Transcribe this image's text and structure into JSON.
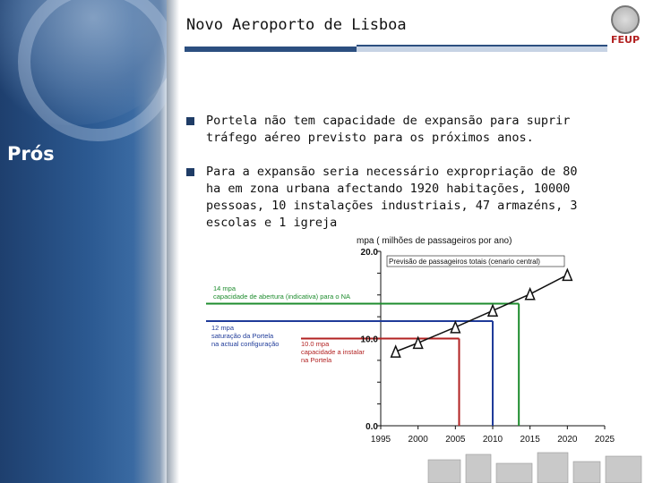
{
  "sidebar": {
    "label": "Prós"
  },
  "header": {
    "title": "Novo Aeroporto de Lisboa",
    "logo_text": "FEUP"
  },
  "bullets": [
    "Portela não tem capacidade de expansão para suprir tráfego aéreo previsto para os próximos anos.",
    "Para a expansão seria necessário expropriação de 80 ha em zona urbana afectando 1920 habitações, 10000 pessoas, 10 instalações industriais, 47 armazéns, 3 escolas e 1 igreja"
  ],
  "chart_data": {
    "type": "line",
    "ylabel": "mpa ( milhões de passageiros por ano)",
    "x_ticks": [
      1995,
      2000,
      2005,
      2010,
      2015,
      2020,
      2025
    ],
    "y_tick_labels": [
      "20.0",
      "10.0",
      "0.0"
    ],
    "xlim": [
      1995,
      2025
    ],
    "ylim": [
      0,
      20
    ],
    "series": [
      {
        "name": "Previsão de passageiros totais (cenario central)",
        "x": [
          1997,
          2000,
          2005,
          2010,
          2015,
          2020
        ],
        "y": [
          8.5,
          9.5,
          11.3,
          13.2,
          15.1,
          17.3
        ]
      }
    ],
    "reference_lines": [
      {
        "label": "14 mpa capacidade de abertura (indicativa) para o NA",
        "y": 14,
        "x": 2013.5,
        "color": "#1e8c2e"
      },
      {
        "label": "12 mpa saturação da Portela na actual configuração",
        "y": 12,
        "x": 2010,
        "color": "#1f3b99"
      },
      {
        "label": "10.0 mpa capacidade a instalar na Portela",
        "y": 10,
        "x": 2005.5,
        "color": "#b22222"
      }
    ]
  }
}
